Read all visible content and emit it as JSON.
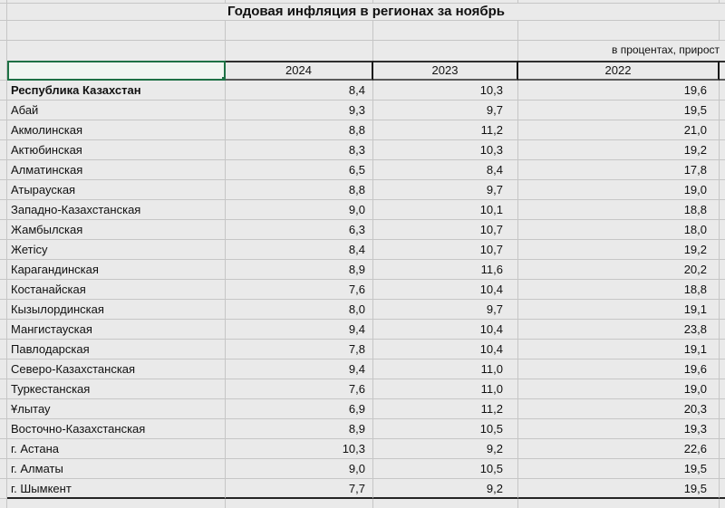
{
  "title": "Годовая инфляция в регионах за ноябрь",
  "units_note": "в процентах, прирост",
  "colors": {
    "background": "#eaeaea",
    "gridline": "#c6c6c6",
    "selection_green": "#1e7145",
    "header_rule": "#2e2e2e"
  },
  "selection": {
    "cell": "region-header-cell",
    "value": "",
    "has_fill_handle": true
  },
  "table": {
    "columns": [
      "2024",
      "2023",
      "2022"
    ],
    "rows": [
      {
        "region": "Республика Казахстан",
        "bold": true,
        "values": [
          "8,4",
          "10,3",
          "19,6"
        ]
      },
      {
        "region": "Абай",
        "bold": false,
        "values": [
          "9,3",
          "9,7",
          "19,5"
        ]
      },
      {
        "region": "Акмолинская",
        "bold": false,
        "values": [
          "8,8",
          "11,2",
          "21,0"
        ]
      },
      {
        "region": "Актюбинская",
        "bold": false,
        "values": [
          "8,3",
          "10,3",
          "19,2"
        ]
      },
      {
        "region": "Алматинская",
        "bold": false,
        "values": [
          "6,5",
          "8,4",
          "17,8"
        ]
      },
      {
        "region": "Атырауская",
        "bold": false,
        "values": [
          "8,8",
          "9,7",
          "19,0"
        ]
      },
      {
        "region": "Западно-Казахстанская",
        "bold": false,
        "values": [
          "9,0",
          "10,1",
          "18,8"
        ]
      },
      {
        "region": "Жамбылская",
        "bold": false,
        "values": [
          "6,3",
          "10,7",
          "18,0"
        ]
      },
      {
        "region": "Жетісу",
        "bold": false,
        "values": [
          "8,4",
          "10,7",
          "19,2"
        ]
      },
      {
        "region": "Карагандинская",
        "bold": false,
        "values": [
          "8,9",
          "11,6",
          "20,2"
        ]
      },
      {
        "region": "Костанайская",
        "bold": false,
        "values": [
          "7,6",
          "10,4",
          "18,8"
        ]
      },
      {
        "region": "Кызылординская",
        "bold": false,
        "values": [
          "8,0",
          "9,7",
          "19,1"
        ]
      },
      {
        "region": "Мангистауская",
        "bold": false,
        "values": [
          "9,4",
          "10,4",
          "23,8"
        ]
      },
      {
        "region": "Павлодарская",
        "bold": false,
        "values": [
          "7,8",
          "10,4",
          "19,1"
        ]
      },
      {
        "region": "Северо-Казахстанская",
        "bold": false,
        "values": [
          "9,4",
          "11,0",
          "19,6"
        ]
      },
      {
        "region": "Туркестанская",
        "bold": false,
        "values": [
          "7,6",
          "11,0",
          "19,0"
        ]
      },
      {
        "region": "Ұлытау",
        "bold": false,
        "values": [
          "6,9",
          "11,2",
          "20,3"
        ]
      },
      {
        "region": "Восточно-Казахстанская",
        "bold": false,
        "values": [
          "8,9",
          "10,5",
          "19,3"
        ]
      },
      {
        "region": "г. Астана",
        "bold": false,
        "values": [
          "10,3",
          "9,2",
          "22,6"
        ]
      },
      {
        "region": "г. Алматы",
        "bold": false,
        "values": [
          "9,0",
          "10,5",
          "19,5"
        ]
      },
      {
        "region": "г. Шымкент",
        "bold": false,
        "values": [
          "7,7",
          "9,2",
          "19,5"
        ]
      }
    ]
  }
}
